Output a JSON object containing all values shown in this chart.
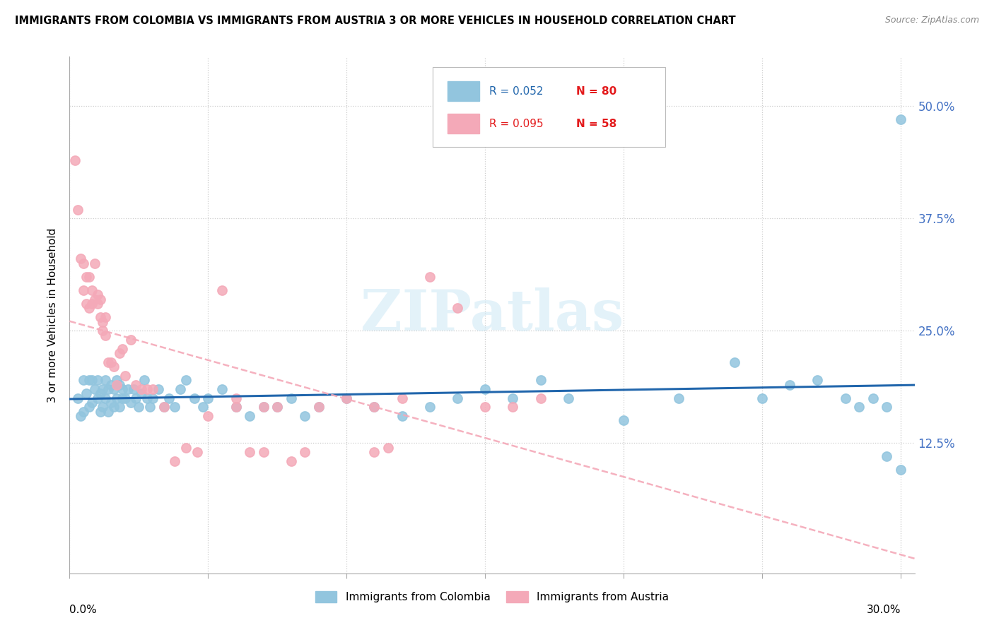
{
  "title": "IMMIGRANTS FROM COLOMBIA VS IMMIGRANTS FROM AUSTRIA 3 OR MORE VEHICLES IN HOUSEHOLD CORRELATION CHART",
  "source": "Source: ZipAtlas.com",
  "ylabel": "3 or more Vehicles in Household",
  "ytick_labels": [
    "50.0%",
    "37.5%",
    "25.0%",
    "12.5%"
  ],
  "ytick_values": [
    0.5,
    0.375,
    0.25,
    0.125
  ],
  "xlim": [
    0.0,
    0.305
  ],
  "ylim": [
    -0.02,
    0.555
  ],
  "colombia_color": "#92c5de",
  "austria_color": "#f4a9b8",
  "colombia_line_color": "#2166ac",
  "austria_line_color": "#f4a9b8",
  "right_label_color": "#4472c4",
  "legend_r_color": "#2166ac",
  "legend_n_color": "#e31a1c",
  "watermark": "ZIPatlas",
  "colombia_scatter_x": [
    0.003,
    0.004,
    0.005,
    0.005,
    0.006,
    0.007,
    0.007,
    0.008,
    0.008,
    0.009,
    0.01,
    0.01,
    0.011,
    0.011,
    0.012,
    0.012,
    0.013,
    0.013,
    0.014,
    0.014,
    0.015,
    0.015,
    0.016,
    0.016,
    0.017,
    0.017,
    0.018,
    0.018,
    0.019,
    0.019,
    0.02,
    0.021,
    0.022,
    0.023,
    0.024,
    0.025,
    0.026,
    0.027,
    0.028,
    0.029,
    0.03,
    0.032,
    0.034,
    0.036,
    0.038,
    0.04,
    0.042,
    0.045,
    0.048,
    0.05,
    0.055,
    0.06,
    0.065,
    0.07,
    0.075,
    0.08,
    0.085,
    0.09,
    0.1,
    0.11,
    0.12,
    0.13,
    0.14,
    0.15,
    0.16,
    0.17,
    0.18,
    0.2,
    0.22,
    0.24,
    0.25,
    0.26,
    0.27,
    0.28,
    0.285,
    0.29,
    0.295,
    0.295,
    0.3,
    0.3
  ],
  "colombia_scatter_y": [
    0.175,
    0.155,
    0.16,
    0.195,
    0.18,
    0.165,
    0.195,
    0.17,
    0.195,
    0.185,
    0.175,
    0.195,
    0.16,
    0.18,
    0.165,
    0.185,
    0.175,
    0.195,
    0.16,
    0.185,
    0.17,
    0.19,
    0.165,
    0.185,
    0.175,
    0.195,
    0.165,
    0.19,
    0.175,
    0.185,
    0.175,
    0.185,
    0.17,
    0.185,
    0.175,
    0.165,
    0.18,
    0.195,
    0.175,
    0.165,
    0.175,
    0.185,
    0.165,
    0.175,
    0.165,
    0.185,
    0.195,
    0.175,
    0.165,
    0.175,
    0.185,
    0.165,
    0.155,
    0.165,
    0.165,
    0.175,
    0.155,
    0.165,
    0.175,
    0.165,
    0.155,
    0.165,
    0.175,
    0.185,
    0.175,
    0.195,
    0.175,
    0.15,
    0.175,
    0.215,
    0.175,
    0.19,
    0.195,
    0.175,
    0.165,
    0.175,
    0.165,
    0.11,
    0.485,
    0.095
  ],
  "austria_scatter_x": [
    0.002,
    0.003,
    0.004,
    0.005,
    0.005,
    0.006,
    0.006,
    0.007,
    0.007,
    0.008,
    0.008,
    0.009,
    0.009,
    0.01,
    0.01,
    0.011,
    0.011,
    0.012,
    0.012,
    0.013,
    0.013,
    0.014,
    0.015,
    0.016,
    0.017,
    0.018,
    0.019,
    0.02,
    0.022,
    0.024,
    0.026,
    0.028,
    0.03,
    0.034,
    0.038,
    0.042,
    0.046,
    0.05,
    0.06,
    0.07,
    0.08,
    0.09,
    0.1,
    0.11,
    0.12,
    0.13,
    0.14,
    0.15,
    0.16,
    0.17,
    0.06,
    0.065,
    0.07,
    0.085,
    0.11,
    0.115,
    0.055,
    0.075
  ],
  "austria_scatter_y": [
    0.44,
    0.385,
    0.33,
    0.325,
    0.295,
    0.31,
    0.28,
    0.31,
    0.275,
    0.295,
    0.28,
    0.325,
    0.285,
    0.28,
    0.29,
    0.265,
    0.285,
    0.25,
    0.26,
    0.245,
    0.265,
    0.215,
    0.215,
    0.21,
    0.19,
    0.225,
    0.23,
    0.2,
    0.24,
    0.19,
    0.185,
    0.185,
    0.185,
    0.165,
    0.105,
    0.12,
    0.115,
    0.155,
    0.165,
    0.165,
    0.105,
    0.165,
    0.175,
    0.165,
    0.175,
    0.31,
    0.275,
    0.165,
    0.165,
    0.175,
    0.175,
    0.115,
    0.115,
    0.115,
    0.115,
    0.12,
    0.295,
    0.165
  ]
}
